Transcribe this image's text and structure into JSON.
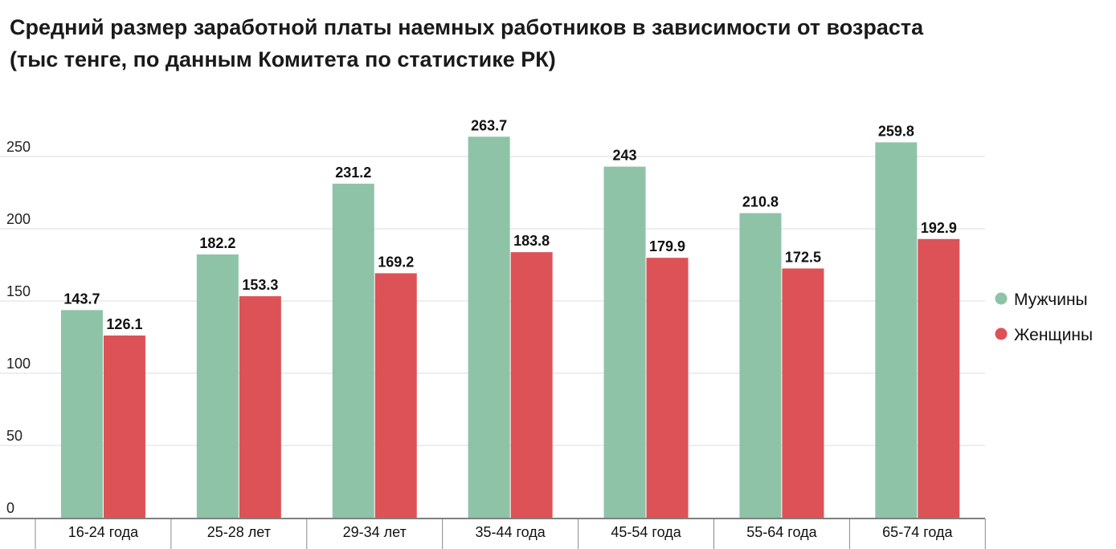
{
  "title_line1": "Средний размер заработной платы наемных работников в зависимости от возраста",
  "title_line2": "(тыс тенге, по данным Комитета по статистике РК)",
  "chart_data": {
    "type": "bar",
    "title": "Средний размер заработной платы наемных работников в зависимости от возраста (тыс тенге, по данным Комитета по статистике РК)",
    "xlabel": "",
    "ylabel": "",
    "ylim": [
      0,
      280
    ],
    "yticks": [
      0,
      50,
      100,
      150,
      200,
      250
    ],
    "grid": true,
    "legend_position": "right",
    "categories": [
      "16-24 года",
      "25-28 лет",
      "29-34 лет",
      "35-44 года",
      "45-54 года",
      "55-64 года",
      "65-74 года"
    ],
    "series": [
      {
        "name": "Мужчины",
        "color": "#8ec3a7",
        "values": [
          143.7,
          182.2,
          231.2,
          263.7,
          243,
          210.8,
          259.8
        ],
        "labels": [
          "143.7",
          "182.2",
          "231.2",
          "263.7",
          "243",
          "210.8",
          "259.8"
        ]
      },
      {
        "name": "Женщины",
        "color": "#dd5257",
        "values": [
          126.1,
          153.3,
          169.2,
          183.8,
          179.9,
          172.5,
          192.9
        ],
        "labels": [
          "126.1",
          "153.3",
          "169.2",
          "183.8",
          "179.9",
          "172.5",
          "192.9"
        ]
      }
    ]
  }
}
